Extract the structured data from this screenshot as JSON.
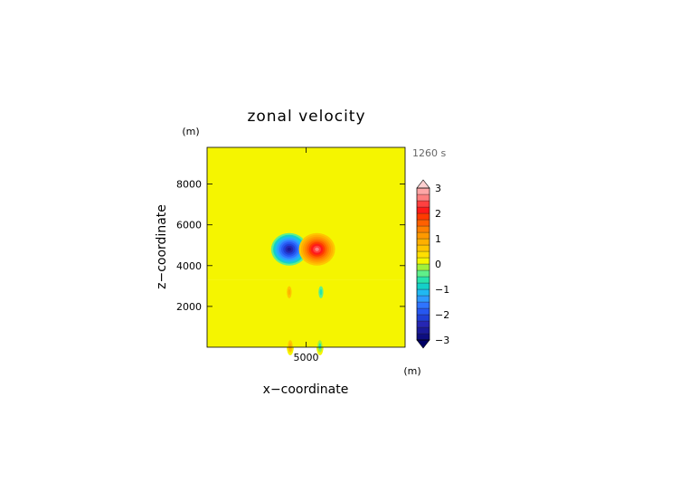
{
  "chart_data": {
    "type": "heatmap",
    "title": "zonal velocity",
    "xlabel": "x−coordinate",
    "ylabel": "z−coordinate",
    "x_unit": "(m)",
    "y_unit": "(m)",
    "time_label": "1260 s",
    "xlim": [
      0,
      10000
    ],
    "ylim": [
      0,
      9800
    ],
    "x_ticks": [
      5000
    ],
    "x_tick_labels": [
      "5000"
    ],
    "y_ticks": [
      2000,
      4000,
      6000,
      8000
    ],
    "y_tick_labels": [
      "2000",
      "4000",
      "6000",
      "8000"
    ],
    "colorbar": {
      "levels": [
        -3.25,
        -3.0,
        -2.75,
        -2.5,
        -2.25,
        -2.0,
        -1.75,
        -1.5,
        -1.25,
        -1.0,
        -0.75,
        -0.5,
        -0.25,
        0.25,
        0.5,
        0.75,
        1.0,
        1.25,
        1.5,
        1.75,
        2.0,
        2.25,
        2.5,
        2.75,
        3.0,
        3.25
      ],
      "tick_values": [
        -3,
        -2,
        -1,
        0,
        1,
        2,
        3
      ],
      "tick_labels": [
        "−3",
        "−2",
        "−1",
        "0",
        "1",
        "2",
        "3"
      ],
      "colors": [
        "#000066",
        "#0d0d80",
        "#1a1a99",
        "#2626b3",
        "#1f3fd6",
        "#2657f0",
        "#2f74ff",
        "#2e9aff",
        "#20b8f2",
        "#14d0c8",
        "#28e3ad",
        "#5ff08a",
        "#9ff03c",
        "#f5f500",
        "#ffdf00",
        "#ffc600",
        "#ffb000",
        "#ff9900",
        "#ff8000",
        "#ff6000",
        "#ff3a00",
        "#ff1a1a",
        "#ff4040",
        "#ff7f7f",
        "#ffa6a6",
        "#ffd0d0"
      ],
      "extend": "both"
    },
    "background": {
      "upper_left": 0.0,
      "upper_right": 0.2,
      "lower_left": 0.2,
      "lower_right": 0.0,
      "interface_z": 3300
    },
    "features": [
      {
        "type": "vortex",
        "x": 4150,
        "z": 4800,
        "peak": -3.0
      },
      {
        "type": "vortex",
        "x": 5550,
        "z": 4800,
        "peak": 2.6
      },
      {
        "type": "blob",
        "x": 4150,
        "z": 2700,
        "peak": 0.9
      },
      {
        "type": "blob",
        "x": 5750,
        "z": 2700,
        "peak": -0.9
      },
      {
        "type": "blob",
        "x": 4200,
        "z": 50,
        "peak": 0.8
      },
      {
        "type": "blob",
        "x": 5700,
        "z": 50,
        "peak": -0.8
      }
    ]
  }
}
